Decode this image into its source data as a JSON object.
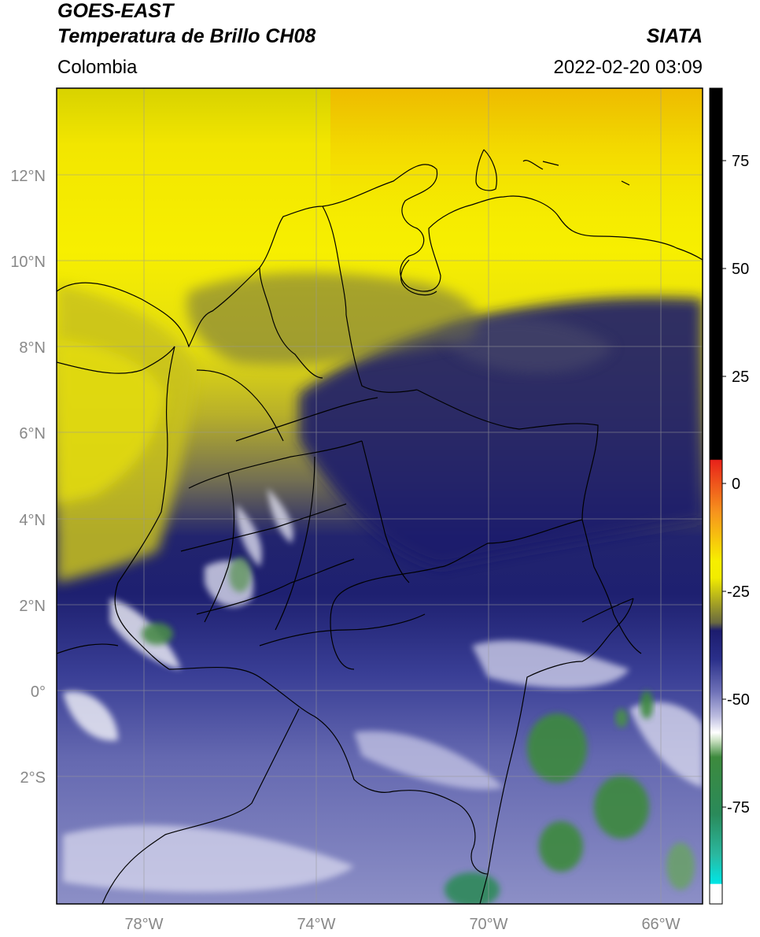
{
  "header": {
    "satellite": "GOES-EAST",
    "product": "Temperatura de Brillo CH08",
    "source": "SIATA",
    "region": "Colombia",
    "datetime": "2022-02-20 03:09"
  },
  "map": {
    "lat_labels": [
      "12°N",
      "10°N",
      "8°N",
      "6°N",
      "4°N",
      "2°N",
      "0°",
      "2°S"
    ],
    "lon_labels": [
      "78°W",
      "74°W",
      "70°W",
      "66°W"
    ],
    "lon_range": [
      -80,
      -65
    ],
    "lat_range": [
      -5,
      14
    ]
  },
  "colorbar": {
    "ticks": [
      "75",
      "50",
      "25",
      "0",
      "-25",
      "-50",
      "-75"
    ],
    "range": [
      -95,
      90
    ],
    "colors": {
      "warm_black": "#000000",
      "red": "#e8221a",
      "orange": "#f7941d",
      "yellow": "#f7ef00",
      "olive": "#8a8a3a",
      "navy": "#1c1c6e",
      "blue": "#2a2f8a",
      "lavender": "#bcbce0",
      "white": "#ffffff",
      "green": "#3d8a3d",
      "teal": "#2ab8a0",
      "cyan": "#00e6e6"
    }
  }
}
